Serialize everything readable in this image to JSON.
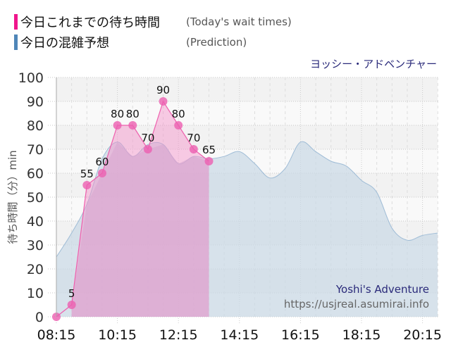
{
  "legend": {
    "today": {
      "label_ja": "今日これまでの待ち時間",
      "label_en": "(Today's wait times)",
      "color": "#f0168c"
    },
    "prediction": {
      "label_ja": "今日の混雑予想",
      "label_en": "(Prediction)",
      "color": "#4f86b8"
    }
  },
  "brand_ja": "ヨッシー・アドベンチャー",
  "watermark": {
    "title": "Yoshi's Adventure",
    "url": "https://usjreal.asumirai.info"
  },
  "chart_data": {
    "type": "area",
    "title": "今日これまでの待ち時間 / 今日の混雑予想",
    "xlabel": "",
    "ylabel": "待ち時間（分）min",
    "ylim": [
      0,
      100
    ],
    "yticks": [
      0,
      10,
      20,
      30,
      40,
      50,
      60,
      70,
      80,
      90,
      100
    ],
    "xtick_labels": [
      "08:15",
      "10:15",
      "12:15",
      "14:15",
      "16:15",
      "18:15",
      "20:15"
    ],
    "x": [
      "08:15",
      "08:45",
      "09:15",
      "09:45",
      "10:15",
      "10:45",
      "11:15",
      "11:45",
      "12:15",
      "12:45",
      "13:15",
      "13:45",
      "14:15",
      "14:45",
      "15:15",
      "15:45",
      "16:15",
      "16:45",
      "17:15",
      "17:45",
      "18:15",
      "18:45",
      "19:15",
      "19:45",
      "20:15",
      "20:45"
    ],
    "series": [
      {
        "name": "今日これまでの待ち時間",
        "color": "#f0168c",
        "values": [
          0,
          5,
          55,
          60,
          80,
          80,
          70,
          90,
          80,
          70,
          65
        ]
      },
      {
        "name": "今日の混雑予想",
        "color": "#4f86b8",
        "values": [
          25,
          35,
          47,
          66,
          73,
          67,
          72,
          72,
          64,
          67,
          66,
          67,
          69,
          64,
          58,
          62,
          73,
          69,
          65,
          63,
          57,
          52,
          37,
          32,
          34,
          35
        ]
      }
    ],
    "grid": true,
    "legend_position": "top-left"
  }
}
